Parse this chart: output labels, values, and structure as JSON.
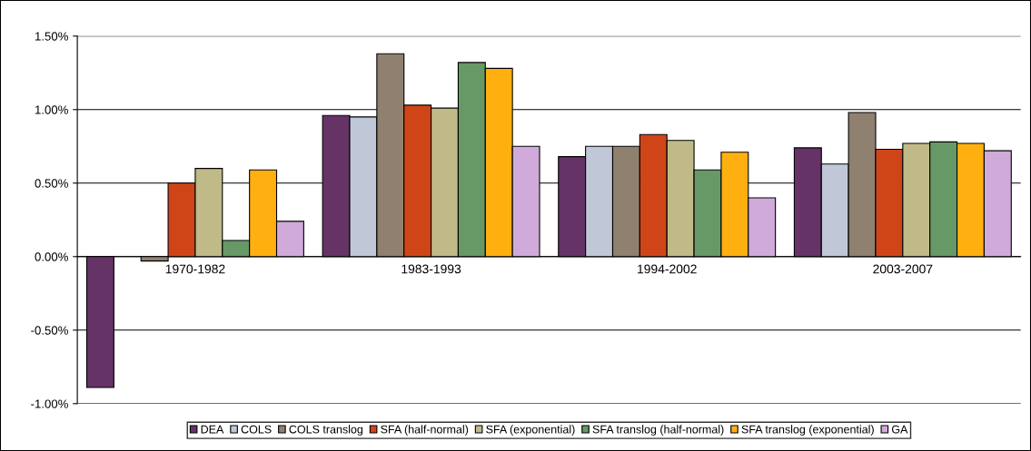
{
  "chart_data": {
    "type": "bar",
    "categories": [
      "1970-1982",
      "1983-1993",
      "1994-2002",
      "2003-2007"
    ],
    "series": [
      {
        "name": "DEA",
        "color": "#663366",
        "values": [
          -0.89,
          0.96,
          0.68,
          0.74
        ]
      },
      {
        "name": "COLS",
        "color": "#c0c8d8",
        "values": [
          null,
          0.95,
          0.75,
          0.63
        ]
      },
      {
        "name": "COLS translog",
        "color": "#8f8070",
        "values": [
          -0.03,
          1.38,
          0.75,
          0.98
        ]
      },
      {
        "name": "SFA (half-normal)",
        "color": "#d04518",
        "values": [
          0.5,
          1.03,
          0.83,
          0.73
        ]
      },
      {
        "name": "SFA (exponential)",
        "color": "#c0ba88",
        "values": [
          0.6,
          1.01,
          0.79,
          0.77
        ]
      },
      {
        "name": "SFA translog (half-normal)",
        "color": "#669966",
        "values": [
          0.11,
          1.32,
          0.59,
          0.78
        ]
      },
      {
        "name": "SFA translog (exponential)",
        "color": "#ffb010",
        "values": [
          0.59,
          1.28,
          0.71,
          0.77
        ]
      },
      {
        "name": "GA",
        "color": "#d0aad8",
        "values": [
          0.24,
          0.75,
          0.4,
          0.72
        ]
      }
    ],
    "ylim": [
      -1.0,
      1.5
    ],
    "yticks": [
      {
        "value": -1.0,
        "label": "-1.00%"
      },
      {
        "value": -0.5,
        "label": "-0.50%"
      },
      {
        "value": 0,
        "label": "0.00%"
      },
      {
        "value": 0.5,
        "label": "0.50%"
      },
      {
        "value": 1.0,
        "label": "1.00%"
      },
      {
        "value": 1.5,
        "label": "1.50%"
      }
    ],
    "grid": "y",
    "legend": "bottom"
  }
}
